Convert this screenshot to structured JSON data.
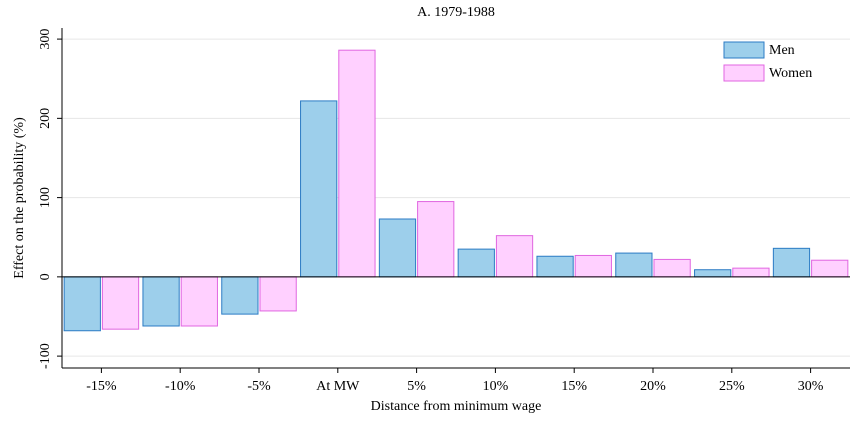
{
  "chart_data": {
    "type": "bar",
    "title": "A. 1979-1988",
    "x_label": "Distance from minimum wage",
    "y_label": "Effect on the probability (%)",
    "categories": [
      "-15%",
      "-10%",
      "-5%",
      "At MW",
      "5%",
      "10%",
      "15%",
      "20%",
      "25%",
      "30%"
    ],
    "series": [
      {
        "name": "Men",
        "color": "#9dcfeb",
        "edge": "#2b7bc4",
        "values": [
          -68,
          -62,
          -47,
          222,
          73,
          35,
          26,
          30,
          9,
          36
        ]
      },
      {
        "name": "Women",
        "color": "#ffd0ff",
        "edge": "#e066e0",
        "values": [
          -66,
          -62,
          -43,
          286,
          95,
          52,
          27,
          22,
          11,
          21
        ]
      }
    ],
    "ylim": [
      -115,
      314
    ],
    "yticks": [
      -100,
      0,
      100,
      200,
      300
    ],
    "grid": true,
    "legend": "top-right"
  }
}
